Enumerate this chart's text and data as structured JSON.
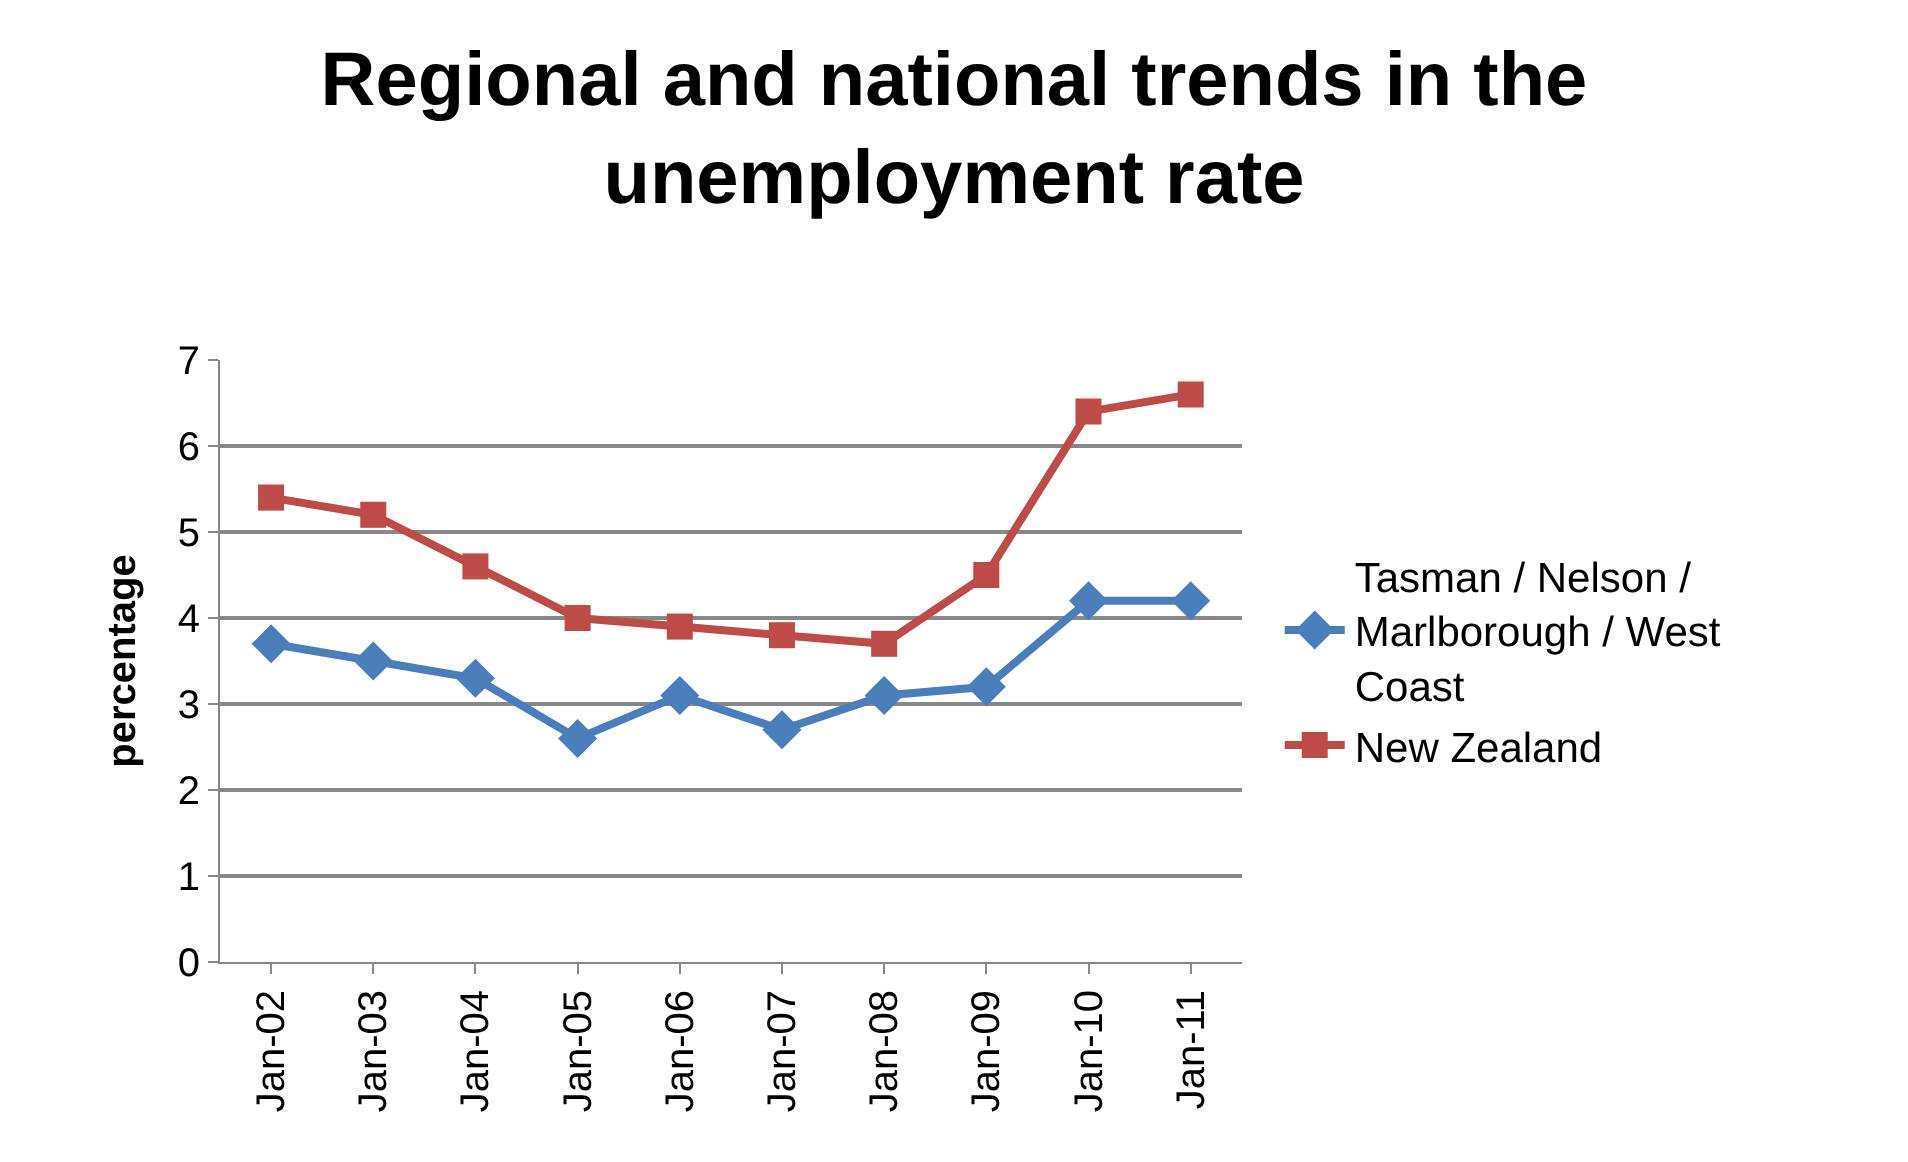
{
  "chart_data": {
    "type": "line",
    "title": "Regional and national trends in the unemployment rate",
    "ylabel": "percentage",
    "categories": [
      "Jan-02",
      "Jan-03",
      "Jan-04",
      "Jan-05",
      "Jan-06",
      "Jan-07",
      "Jan-08",
      "Jan-09",
      "Jan-10",
      "Jan-11"
    ],
    "series": [
      {
        "name": "Tasman / Nelson / Marlborough / West Coast",
        "color": "#4a7ebb",
        "marker": "diamond",
        "values": [
          3.7,
          3.5,
          3.3,
          2.6,
          3.1,
          2.7,
          3.1,
          3.2,
          4.2,
          4.2
        ]
      },
      {
        "name": "New Zealand",
        "color": "#be4b48",
        "marker": "square",
        "values": [
          5.4,
          5.2,
          4.6,
          4.0,
          3.9,
          3.8,
          3.7,
          4.5,
          6.4,
          6.6
        ]
      }
    ],
    "ylim": [
      0,
      7
    ],
    "yticks": [
      0,
      1,
      2,
      3,
      4,
      5,
      6,
      7
    ],
    "grid": "y",
    "legend": "right",
    "line_style": "solid"
  }
}
